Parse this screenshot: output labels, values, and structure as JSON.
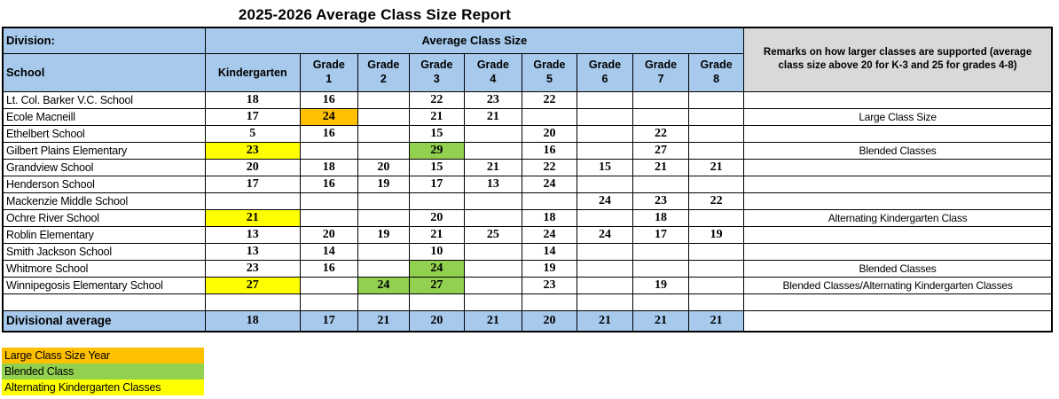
{
  "title": "2025-2026 Average Class Size Report",
  "colors": {
    "header_blue": "#A6C9EC",
    "remarks_gray": "#D9D9D9",
    "orange": "#FFC000",
    "green": "#92D050",
    "yellow": "#FFFF00"
  },
  "table": {
    "division_label": "Division:",
    "school_label": "School",
    "avg_class_size_label": "Average Class Size",
    "remarks_label": "Remarks on how larger classes are supported (average class size above 20 for K-3 and 25 for grades 4-8)",
    "columns": [
      "Kindergarten",
      "Grade 1",
      "Grade 2",
      "Grade 3",
      "Grade 4",
      "Grade 5",
      "Grade 6",
      "Grade 7",
      "Grade 8"
    ],
    "rows": [
      {
        "school": "Lt. Col. Barker V.C. School",
        "values": [
          "18",
          "16",
          "",
          "22",
          "23",
          "22",
          "",
          "",
          ""
        ],
        "highlights": {},
        "remark": ""
      },
      {
        "school": "Ecole Macneill",
        "values": [
          "17",
          "24",
          "",
          "21",
          "21",
          "",
          "",
          "",
          ""
        ],
        "highlights": {
          "1": "orange"
        },
        "remark": "Large Class Size"
      },
      {
        "school": "Ethelbert School",
        "values": [
          "5",
          "16",
          "",
          "15",
          "",
          "20",
          "",
          "22",
          ""
        ],
        "highlights": {},
        "remark": ""
      },
      {
        "school": "Gilbert Plains Elementary",
        "values": [
          "23",
          "",
          "",
          "29",
          "",
          "16",
          "",
          "27",
          ""
        ],
        "highlights": {
          "0": "yellow",
          "3": "green"
        },
        "remark": "Blended Classes"
      },
      {
        "school": "Grandview School",
        "values": [
          "20",
          "18",
          "20",
          "15",
          "21",
          "22",
          "15",
          "21",
          "21"
        ],
        "highlights": {},
        "remark": ""
      },
      {
        "school": "Henderson School",
        "values": [
          "17",
          "16",
          "19",
          "17",
          "13",
          "24",
          "",
          "",
          ""
        ],
        "highlights": {},
        "remark": ""
      },
      {
        "school": "Mackenzie Middle School",
        "values": [
          "",
          "",
          "",
          "",
          "",
          "",
          "24",
          "23",
          "22"
        ],
        "highlights": {},
        "remark": ""
      },
      {
        "school": "Ochre River School",
        "values": [
          "21",
          "",
          "",
          "20",
          "",
          "18",
          "",
          "18",
          ""
        ],
        "highlights": {
          "0": "yellow"
        },
        "remark": "Alternating Kindergarten Class"
      },
      {
        "school": "Roblin Elementary",
        "values": [
          "13",
          "20",
          "19",
          "21",
          "25",
          "24",
          "24",
          "17",
          "19"
        ],
        "highlights": {},
        "remark": ""
      },
      {
        "school": "Smith Jackson School",
        "values": [
          "13",
          "14",
          "",
          "10",
          "",
          "14",
          "",
          "",
          ""
        ],
        "highlights": {},
        "remark": ""
      },
      {
        "school": "Whitmore School",
        "values": [
          "23",
          "16",
          "",
          "24",
          "",
          "19",
          "",
          "",
          ""
        ],
        "highlights": {
          "3": "green"
        },
        "remark": "Blended Classes"
      },
      {
        "school": "Winnipegosis Elementary School",
        "values": [
          "27",
          "",
          "24",
          "27",
          "",
          "23",
          "",
          "19",
          ""
        ],
        "highlights": {
          "0": "yellow",
          "2": "green",
          "3": "green"
        },
        "remark": "Blended Classes/Alternating Kindergarten Classes"
      }
    ],
    "average": {
      "label": "Divisional average",
      "values": [
        "18",
        "17",
        "21",
        "20",
        "21",
        "20",
        "21",
        "21",
        "21"
      ],
      "remark": ""
    }
  },
  "legend": [
    {
      "label": "Large Class Size Year",
      "color": "orange"
    },
    {
      "label": "Blended Class",
      "color": "green"
    },
    {
      "label": "Alternating Kindergarten Classes",
      "color": "yellow"
    }
  ]
}
